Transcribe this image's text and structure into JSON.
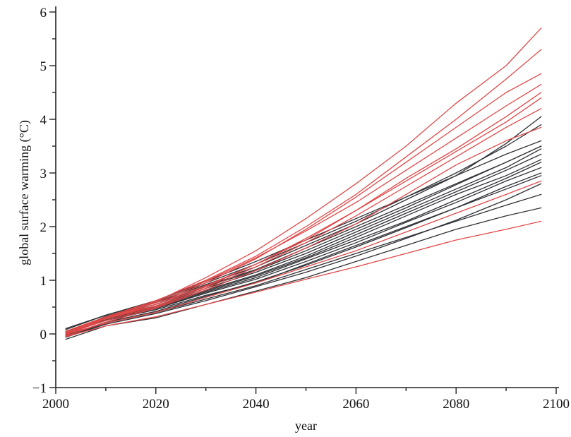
{
  "chart_data": {
    "type": "line",
    "title": "",
    "xlabel": "year",
    "ylabel": "global surface warming (°C)",
    "xlim": [
      2000,
      2100
    ],
    "ylim": [
      -1,
      6
    ],
    "x_ticks": [
      2000,
      2020,
      2040,
      2060,
      2080,
      2100
    ],
    "x_minor_ticks": [
      2010,
      2030,
      2050,
      2070,
      2090
    ],
    "y_ticks": [
      -1,
      0,
      1,
      2,
      3,
      4,
      5,
      6
    ],
    "y_minor_ticks": [
      -0.5,
      0.5,
      1.5,
      2.5,
      3.5,
      4.5,
      5.5
    ],
    "grid": false,
    "legend": "none",
    "colors": {
      "group_a": "#e04848",
      "group_b": "#2f3035"
    },
    "x": [
      2002,
      2010,
      2020,
      2030,
      2040,
      2050,
      2060,
      2070,
      2080,
      2090,
      2097
    ],
    "series": [
      {
        "group": "group_b",
        "values": [
          0.0,
          0.32,
          0.55,
          0.9,
          1.2,
          1.6,
          2.0,
          2.4,
          2.8,
          3.2,
          3.5
        ]
      },
      {
        "group": "group_b",
        "values": [
          0.05,
          0.3,
          0.5,
          0.82,
          1.1,
          1.45,
          1.85,
          2.25,
          2.65,
          3.05,
          3.35
        ]
      },
      {
        "group": "group_b",
        "values": [
          -0.02,
          0.28,
          0.48,
          0.78,
          1.05,
          1.4,
          1.75,
          2.1,
          2.5,
          2.9,
          3.2
        ]
      },
      {
        "group": "group_b",
        "values": [
          0.02,
          0.25,
          0.45,
          0.72,
          0.95,
          1.3,
          1.65,
          2.0,
          2.35,
          2.75,
          3.0
        ]
      },
      {
        "group": "group_b",
        "values": [
          0.1,
          0.35,
          0.6,
          0.95,
          1.3,
          1.7,
          2.1,
          2.55,
          3.0,
          3.5,
          3.9
        ]
      },
      {
        "group": "group_b",
        "values": [
          0.0,
          0.33,
          0.58,
          0.92,
          1.25,
          1.65,
          2.05,
          2.5,
          2.95,
          3.55,
          4.05
        ]
      },
      {
        "group": "group_b",
        "values": [
          -0.05,
          0.2,
          0.4,
          0.65,
          0.9,
          1.2,
          1.5,
          1.8,
          2.1,
          2.4,
          2.6
        ]
      },
      {
        "group": "group_b",
        "values": [
          -0.1,
          0.15,
          0.3,
          0.55,
          0.8,
          1.05,
          1.35,
          1.65,
          1.95,
          2.2,
          2.35
        ]
      },
      {
        "group": "group_b",
        "values": [
          0.05,
          0.3,
          0.52,
          0.85,
          1.15,
          1.5,
          1.9,
          2.3,
          2.7,
          3.1,
          3.45
        ]
      },
      {
        "group": "group_b",
        "values": [
          0.0,
          0.28,
          0.5,
          0.8,
          1.08,
          1.42,
          1.8,
          2.2,
          2.6,
          2.95,
          3.25
        ]
      },
      {
        "group": "group_b",
        "values": [
          0.08,
          0.35,
          0.62,
          0.98,
          1.35,
          1.75,
          2.15,
          2.55,
          2.95,
          3.35,
          3.6
        ]
      },
      {
        "group": "group_b",
        "values": [
          -0.03,
          0.22,
          0.42,
          0.7,
          0.97,
          1.28,
          1.62,
          1.98,
          2.35,
          2.7,
          2.95
        ]
      },
      {
        "group": "group_b",
        "values": [
          0.02,
          0.26,
          0.47,
          0.76,
          1.02,
          1.35,
          1.7,
          2.08,
          2.45,
          2.85,
          3.1
        ]
      },
      {
        "group": "group_b",
        "values": [
          0.03,
          0.3,
          0.55,
          0.88,
          1.18,
          1.55,
          1.95,
          2.35,
          2.78,
          3.2,
          3.5
        ]
      },
      {
        "group": "group_b",
        "values": [
          -0.06,
          0.18,
          0.38,
          0.62,
          0.88,
          1.15,
          1.45,
          1.78,
          2.12,
          2.5,
          2.8
        ]
      },
      {
        "group": "group_a",
        "values": [
          0.0,
          0.3,
          0.6,
          1.05,
          1.55,
          2.15,
          2.8,
          3.5,
          4.3,
          5.0,
          5.7
        ]
      },
      {
        "group": "group_a",
        "values": [
          0.05,
          0.32,
          0.62,
          1.0,
          1.45,
          2.0,
          2.6,
          3.3,
          4.0,
          4.75,
          5.3
        ]
      },
      {
        "group": "group_a",
        "values": [
          -0.02,
          0.28,
          0.55,
          0.95,
          1.4,
          1.95,
          2.55,
          3.2,
          3.85,
          4.5,
          4.85
        ]
      },
      {
        "group": "group_a",
        "values": [
          0.02,
          0.3,
          0.58,
          0.98,
          1.42,
          1.92,
          2.45,
          3.05,
          3.65,
          4.25,
          4.65
        ]
      },
      {
        "group": "group_a",
        "values": [
          0.0,
          0.25,
          0.5,
          0.85,
          1.25,
          1.7,
          2.2,
          2.75,
          3.3,
          3.85,
          4.2
        ]
      },
      {
        "group": "group_a",
        "values": [
          -0.04,
          0.22,
          0.48,
          0.82,
          1.18,
          1.6,
          2.05,
          2.6,
          3.15,
          3.6,
          3.85
        ]
      },
      {
        "group": "group_a",
        "values": [
          0.03,
          0.28,
          0.52,
          0.88,
          1.3,
          1.78,
          2.3,
          2.9,
          3.45,
          4.05,
          4.5
        ]
      },
      {
        "group": "group_a",
        "values": [
          0.0,
          0.2,
          0.4,
          0.68,
          0.95,
          1.25,
          1.55,
          1.9,
          2.25,
          2.6,
          2.85
        ]
      },
      {
        "group": "group_a",
        "values": [
          -0.05,
          0.15,
          0.32,
          0.55,
          0.78,
          1.02,
          1.25,
          1.5,
          1.75,
          1.95,
          2.1
        ]
      },
      {
        "group": "group_a",
        "values": [
          0.05,
          0.3,
          0.55,
          0.9,
          1.3,
          1.75,
          2.3,
          2.85,
          3.4,
          3.95,
          4.4
        ]
      }
    ]
  }
}
